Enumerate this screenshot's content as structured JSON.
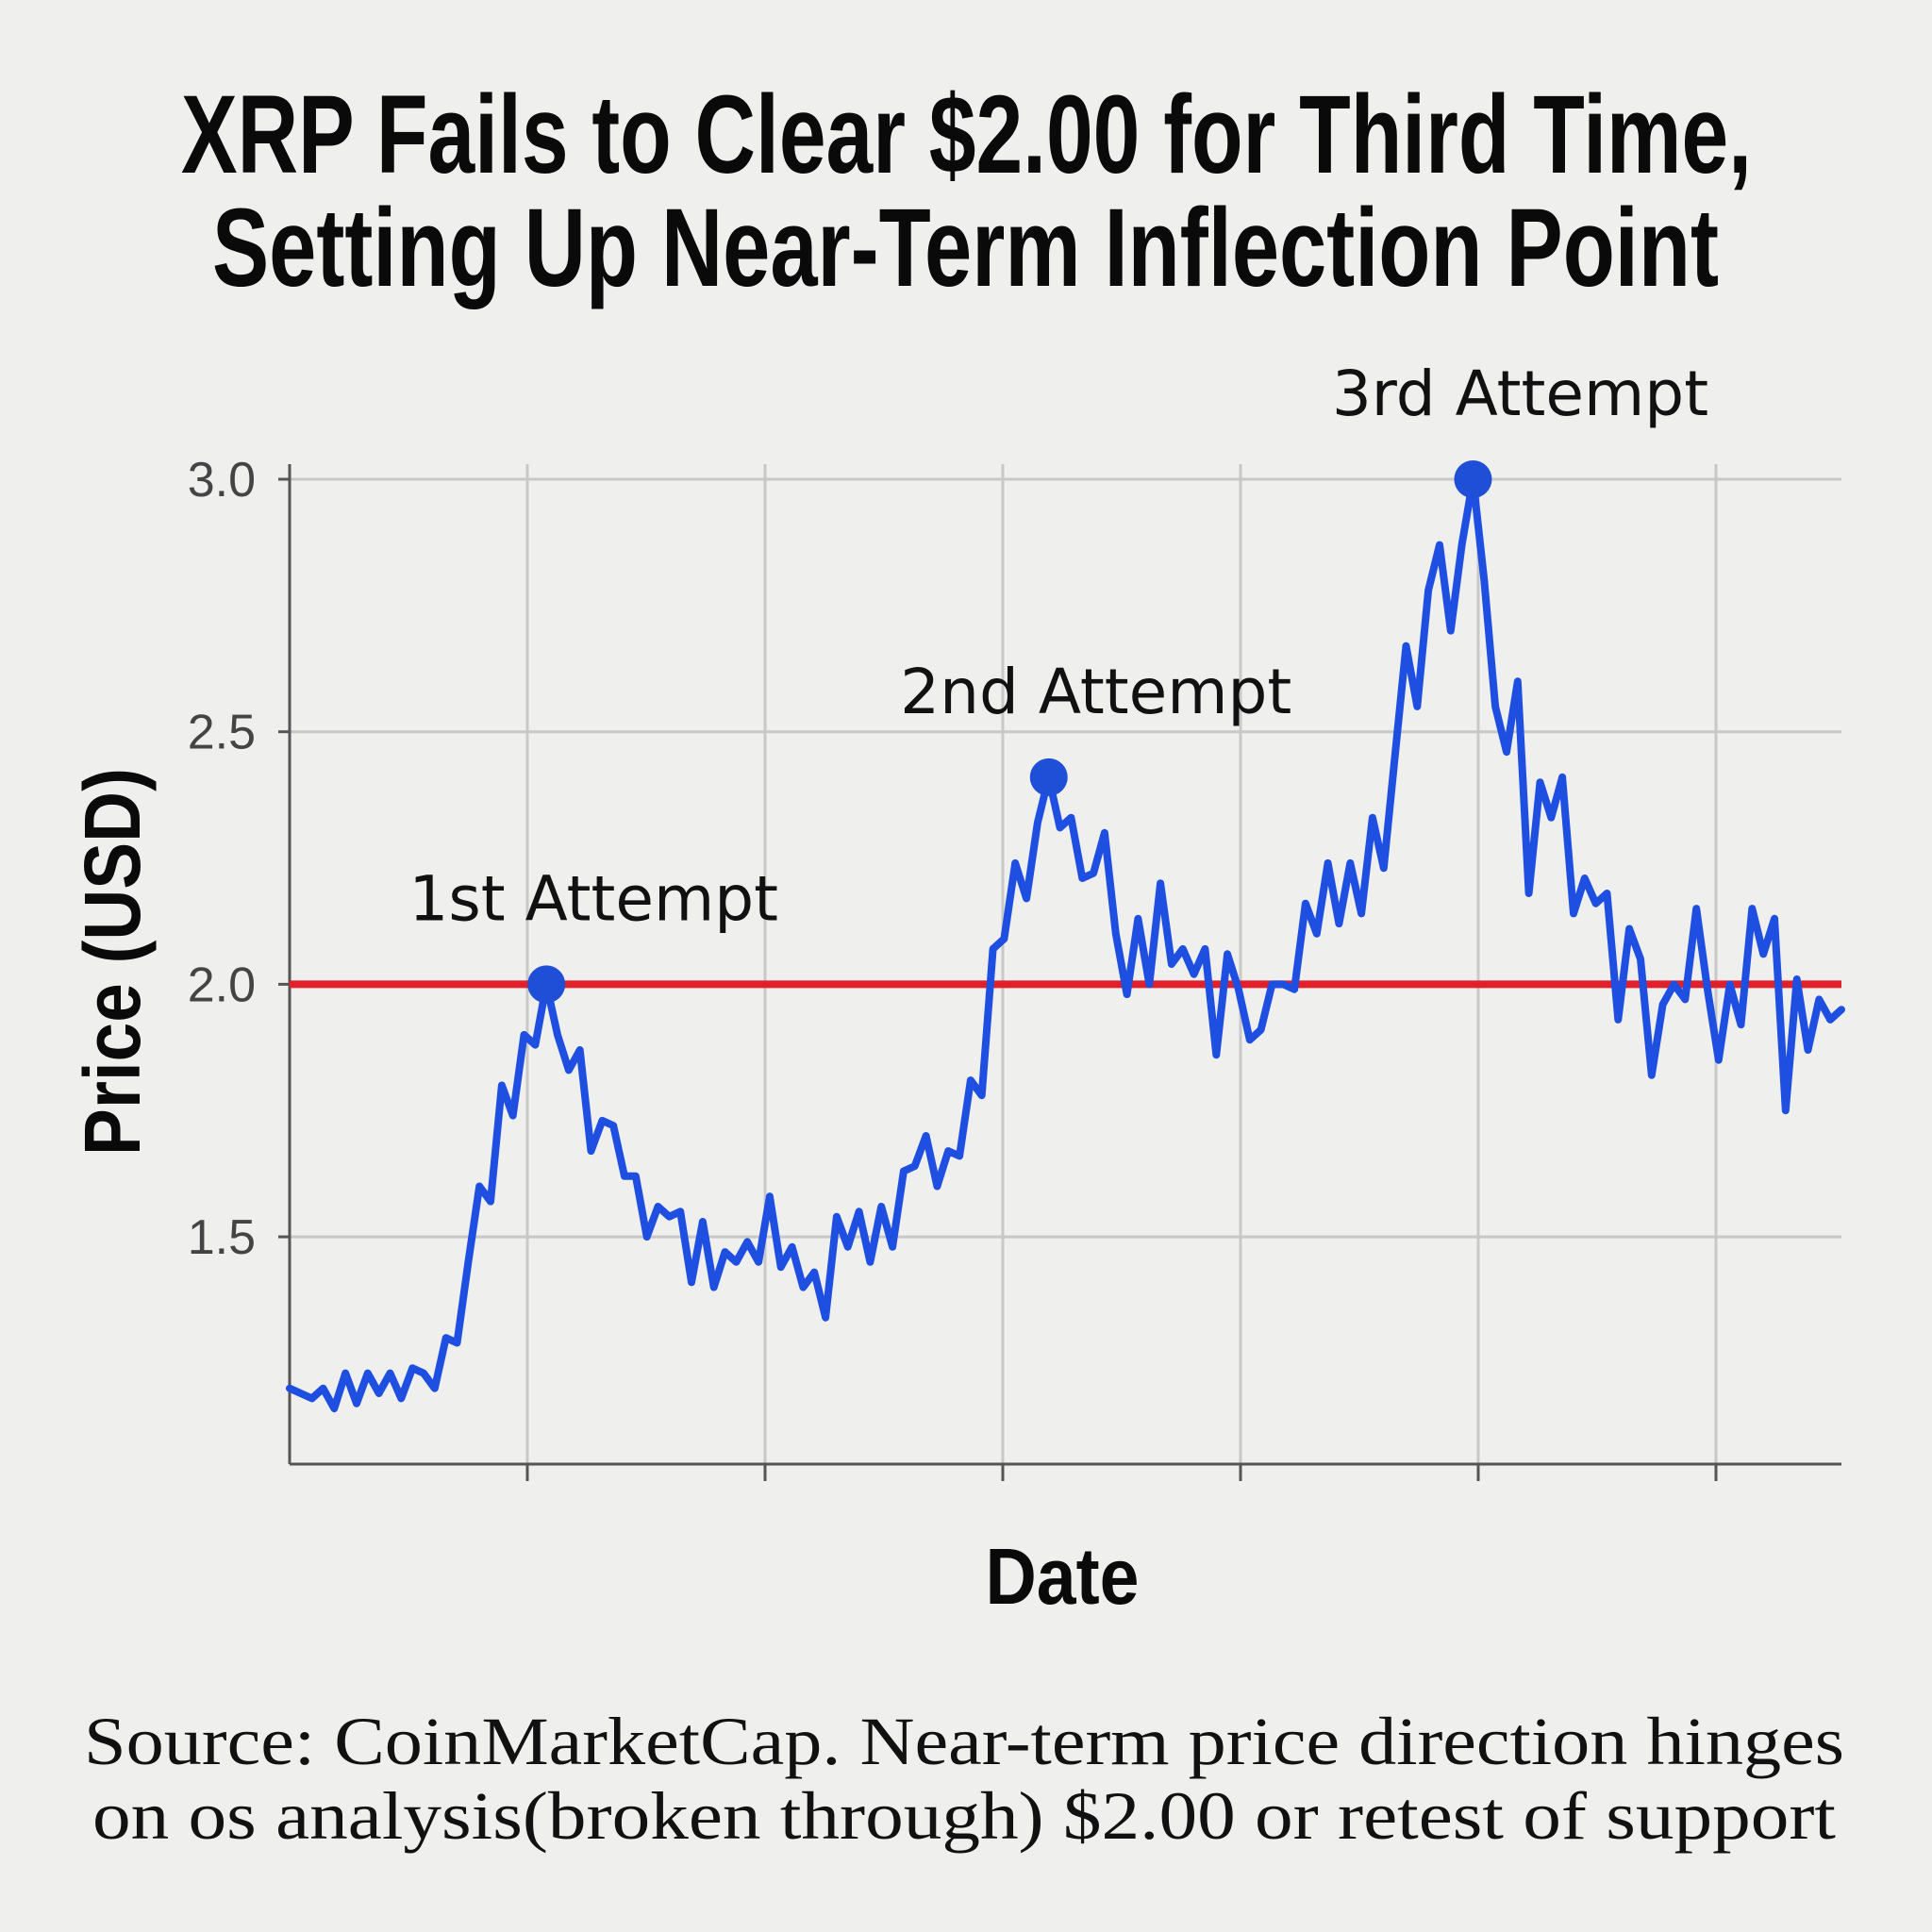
{
  "chart_data": {
    "type": "line",
    "title": [
      "XRP Fails to Clear $2.00 for Third Time,",
      "Setting Up Near-Term Inflection Point"
    ],
    "xlabel": "Date",
    "ylabel": "Price (USD)",
    "ylim": [
      1.05,
      3.0
    ],
    "yticks": [
      "1.5",
      "2.0",
      "2.5",
      "3.0"
    ],
    "ytick_values": [
      1.5,
      2.0,
      2.5,
      3.0
    ],
    "grid": true,
    "reference_line": {
      "value": 2.0,
      "color": "#e0202a"
    },
    "series": [
      {
        "name": "XRP",
        "color": "#1f4fe0",
        "values": [
          1.2,
          1.19,
          1.18,
          1.2,
          1.16,
          1.23,
          1.17,
          1.23,
          1.19,
          1.23,
          1.18,
          1.24,
          1.23,
          1.2,
          1.3,
          1.29,
          1.45,
          1.6,
          1.57,
          1.8,
          1.74,
          1.9,
          1.88,
          2.0,
          1.9,
          1.83,
          1.87,
          1.67,
          1.73,
          1.72,
          1.62,
          1.62,
          1.5,
          1.56,
          1.54,
          1.55,
          1.41,
          1.53,
          1.4,
          1.47,
          1.45,
          1.49,
          1.45,
          1.58,
          1.44,
          1.48,
          1.4,
          1.43,
          1.34,
          1.54,
          1.48,
          1.55,
          1.45,
          1.56,
          1.48,
          1.63,
          1.64,
          1.7,
          1.6,
          1.67,
          1.66,
          1.81,
          1.78,
          2.07,
          2.09,
          2.24,
          2.17,
          2.32,
          2.41,
          2.31,
          2.33,
          2.21,
          2.22,
          2.3,
          2.1,
          1.98,
          2.13,
          2.0,
          2.2,
          2.04,
          2.07,
          2.02,
          2.07,
          1.86,
          2.06,
          1.99,
          1.89,
          1.91,
          2.0,
          2.0,
          1.99,
          2.16,
          2.1,
          2.24,
          2.12,
          2.24,
          2.14,
          2.33,
          2.23,
          2.45,
          2.67,
          2.55,
          2.78,
          2.87,
          2.7,
          2.87,
          3.0,
          2.8,
          2.55,
          2.46,
          2.6,
          2.18,
          2.4,
          2.33,
          2.41,
          2.14,
          2.21,
          2.16,
          2.18,
          1.93,
          2.11,
          2.05,
          1.82,
          1.96,
          2.0,
          1.97,
          2.15,
          1.99,
          1.85,
          2.0,
          1.92,
          2.15,
          2.06,
          2.13,
          1.75,
          2.01,
          1.87,
          1.97,
          1.93,
          1.95
        ]
      }
    ],
    "annotations": [
      {
        "label": "1st Attempt",
        "index": 23,
        "value": 2.0
      },
      {
        "label": "2nd Attempt",
        "index": 68,
        "value": 2.41
      },
      {
        "label": "3rd Attempt",
        "index": 106,
        "value": 3.0
      }
    ],
    "x_tick_count": 6
  },
  "source": [
    "Source: CoinMarketCap. Near-term price direction hinges",
    "on os analysis(broken through) $2.00 or retest of support"
  ]
}
